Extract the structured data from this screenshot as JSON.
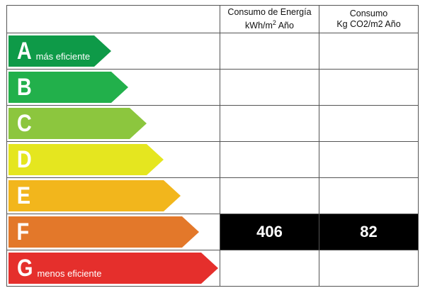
{
  "headers": {
    "energy": {
      "line1": "Consumo de Energía",
      "line2": "kWh/m",
      "sup": "2",
      "line2_tail": " Año"
    },
    "co2": {
      "line1": "Consumo",
      "line2": "Kg CO2/m2 Año"
    }
  },
  "bands": [
    {
      "letter": "A",
      "caption": "más eficiente",
      "color": "#0e9a48",
      "length_fraction": 0.49
    },
    {
      "letter": "B",
      "caption": "",
      "color": "#22b04b",
      "length_fraction": 0.57
    },
    {
      "letter": "C",
      "caption": "",
      "color": "#8cc63e",
      "length_fraction": 0.66
    },
    {
      "letter": "D",
      "caption": "",
      "color": "#e5e61f",
      "length_fraction": 0.74
    },
    {
      "letter": "E",
      "caption": "",
      "color": "#f2b61c",
      "length_fraction": 0.82
    },
    {
      "letter": "F",
      "caption": "",
      "color": "#e3782a",
      "length_fraction": 0.91
    },
    {
      "letter": "G",
      "caption": "menos eficiente",
      "color": "#e52f2c",
      "length_fraction": 1.0
    }
  ],
  "values": {
    "rating": "F",
    "energy": "406",
    "co2": "82"
  }
}
